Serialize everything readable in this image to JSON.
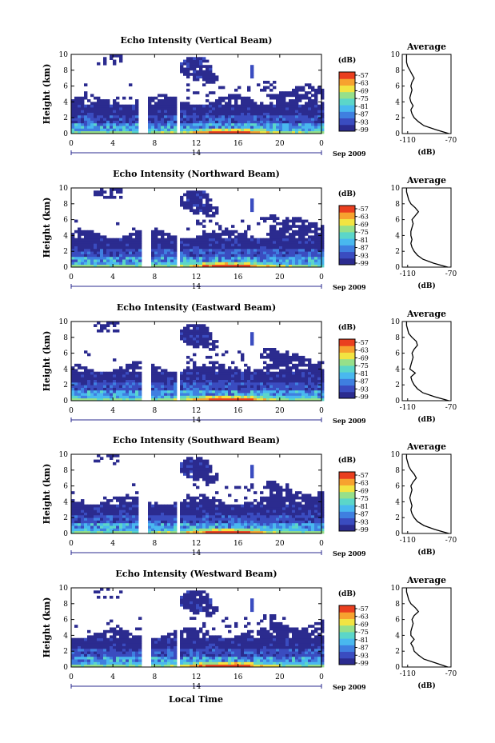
{
  "figure": {
    "x_axis_label": "Local Time",
    "date_label": "Sep 2009",
    "date_day": "14",
    "height_axis_label": "Height (km)",
    "colorbar_unit": "(dB)",
    "average_title": "Average",
    "average_xlabel": "(dB)"
  },
  "palette": [
    "#2b2b8f",
    "#3a4cc0",
    "#3f7fe0",
    "#49b8ef",
    "#5bd6c9",
    "#96e08a",
    "#f2e442",
    "#f7a22f",
    "#ea3f1f"
  ],
  "chart_data": [
    {
      "type": "heatmap",
      "title": "Echo Intensity (Vertical Beam)",
      "ylabel": "Height (km)",
      "xlabel": "Local Time",
      "x_ticks": [
        "0",
        "4",
        "8",
        "12",
        "16",
        "20",
        "0"
      ],
      "x_range": [
        0,
        24
      ],
      "y_ticks": [
        "0",
        "2",
        "4",
        "6",
        "8",
        "10"
      ],
      "y_range": [
        0,
        10
      ],
      "colorbar_ticks": [
        "-57",
        "-63",
        "-69",
        "-75",
        "-81",
        "-87",
        "-93",
        "-99"
      ],
      "gaps_local_time": [
        6.9,
        10.3
      ],
      "profile": {
        "title": "Average",
        "xlabel": "(dB)",
        "x_ticks": [
          "-110",
          "-70"
        ],
        "x_range": [
          -115,
          -70
        ],
        "heights": [
          0,
          0.5,
          1,
          1.5,
          2,
          2.5,
          3,
          3.5,
          4,
          4.5,
          5,
          5.5,
          6,
          6.5,
          7,
          7.5,
          8,
          8.5,
          9,
          9.5,
          10
        ],
        "values": [
          -72,
          -84,
          -95,
          -100,
          -104,
          -106,
          -107,
          -105,
          -107,
          -108,
          -107,
          -106,
          -107,
          -106,
          -104,
          -106,
          -108,
          -110,
          -111,
          -111,
          -111
        ]
      }
    },
    {
      "type": "heatmap",
      "title": "Echo Intensity (Northward Beam)",
      "ylabel": "Height (km)",
      "xlabel": "Local Time",
      "x_ticks": [
        "0",
        "4",
        "8",
        "12",
        "16",
        "20",
        "0"
      ],
      "x_range": [
        0,
        24
      ],
      "y_ticks": [
        "0",
        "2",
        "4",
        "6",
        "8",
        "10"
      ],
      "y_range": [
        0,
        10
      ],
      "colorbar_ticks": [
        "-57",
        "-63",
        "-69",
        "-75",
        "-81",
        "-87",
        "-93",
        "-99"
      ],
      "gaps_local_time": [
        7.2,
        10.3
      ],
      "profile": {
        "title": "Average",
        "xlabel": "(dB)",
        "x_ticks": [
          "-110",
          "-70"
        ],
        "x_range": [
          -115,
          -70
        ],
        "heights": [
          0,
          0.5,
          1,
          1.5,
          2,
          2.5,
          3,
          3.5,
          4,
          4.5,
          5,
          5.5,
          6,
          6.5,
          7,
          7.5,
          8,
          8.5,
          9,
          9.5,
          10
        ],
        "values": [
          -73,
          -86,
          -96,
          -101,
          -104,
          -106,
          -107,
          -106,
          -107,
          -107,
          -106,
          -105,
          -106,
          -103,
          -100,
          -103,
          -107,
          -109,
          -110,
          -111,
          -111
        ]
      }
    },
    {
      "type": "heatmap",
      "title": "Echo Intensity (Eastward Beam)",
      "ylabel": "Height (km)",
      "xlabel": "Local Time",
      "x_ticks": [
        "0",
        "4",
        "8",
        "12",
        "16",
        "20",
        "0"
      ],
      "x_range": [
        0,
        24
      ],
      "y_ticks": [
        "0",
        "2",
        "4",
        "6",
        "8",
        "10"
      ],
      "y_range": [
        0,
        10
      ],
      "colorbar_ticks": [
        "-57",
        "-63",
        "-69",
        "-75",
        "-81",
        "-87",
        "-93",
        "-99"
      ],
      "gaps_local_time": [
        7.2,
        10.3
      ],
      "profile": {
        "title": "Average",
        "xlabel": "(dB)",
        "x_ticks": [
          "-110",
          "-70"
        ],
        "x_range": [
          -115,
          -70
        ],
        "heights": [
          0,
          0.5,
          1,
          1.5,
          2,
          2.5,
          3,
          3.5,
          4,
          4.5,
          5,
          5.5,
          6,
          6.5,
          7,
          7.5,
          8,
          8.5,
          9,
          9.5,
          10
        ],
        "values": [
          -72,
          -85,
          -96,
          -101,
          -104,
          -106,
          -107,
          -103,
          -108,
          -107,
          -106,
          -105,
          -106,
          -104,
          -101,
          -102,
          -106,
          -109,
          -110,
          -111,
          -111
        ]
      }
    },
    {
      "type": "heatmap",
      "title": "Echo Intensity (Southward Beam)",
      "ylabel": "Height (km)",
      "xlabel": "Local Time",
      "x_ticks": [
        "0",
        "4",
        "8",
        "12",
        "16",
        "20",
        "0"
      ],
      "x_range": [
        0,
        24
      ],
      "y_ticks": [
        "0",
        "2",
        "4",
        "6",
        "8",
        "10"
      ],
      "y_range": [
        0,
        10
      ],
      "colorbar_ticks": [
        "-57",
        "-63",
        "-69",
        "-75",
        "-81",
        "-87",
        "-93",
        "-99"
      ],
      "gaps_local_time": [
        6.9,
        10.3
      ],
      "profile": {
        "title": "Average",
        "xlabel": "(dB)",
        "x_ticks": [
          "-110",
          "-70"
        ],
        "x_range": [
          -115,
          -70
        ],
        "heights": [
          0,
          0.5,
          1,
          1.5,
          2,
          2.5,
          3,
          3.5,
          4,
          4.5,
          5,
          5.5,
          6,
          6.5,
          7,
          7.5,
          8,
          8.5,
          9,
          9.5,
          10
        ],
        "values": [
          -72,
          -85,
          -95,
          -101,
          -104,
          -106,
          -107,
          -106,
          -107,
          -108,
          -107,
          -106,
          -107,
          -105,
          -102,
          -104,
          -107,
          -109,
          -110,
          -111,
          -111
        ]
      }
    },
    {
      "type": "heatmap",
      "title": "Echo Intensity (Westward Beam)",
      "ylabel": "Height (km)",
      "xlabel": "Local Time",
      "x_ticks": [
        "0",
        "4",
        "8",
        "12",
        "16",
        "20",
        "0"
      ],
      "x_range": [
        0,
        24
      ],
      "y_ticks": [
        "0",
        "2",
        "4",
        "6",
        "8",
        "10"
      ],
      "y_range": [
        0,
        10
      ],
      "colorbar_ticks": [
        "-57",
        "-63",
        "-69",
        "-75",
        "-81",
        "-87",
        "-93",
        "-99"
      ],
      "gaps_local_time": [
        7.2,
        10.3
      ],
      "profile": {
        "title": "Average",
        "xlabel": "(dB)",
        "x_ticks": [
          "-110",
          "-70"
        ],
        "x_range": [
          -115,
          -70
        ],
        "heights": [
          0,
          0.5,
          1,
          1.5,
          2,
          2.5,
          3,
          3.5,
          4,
          4.5,
          5,
          5.5,
          6,
          6.5,
          7,
          7.5,
          8,
          8.5,
          9,
          9.5,
          10
        ],
        "values": [
          -73,
          -84,
          -95,
          -100,
          -104,
          -105,
          -107,
          -104,
          -107,
          -107,
          -106,
          -105,
          -106,
          -104,
          -100,
          -103,
          -107,
          -109,
          -110,
          -111,
          -111
        ]
      }
    }
  ]
}
